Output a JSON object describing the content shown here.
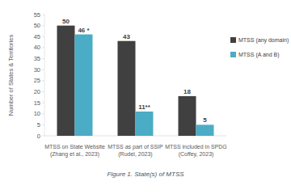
{
  "chart_data": {
    "type": "bar",
    "caption": "Figure 1. State(s) of MTSS",
    "y_label": "Number of States & Territories",
    "categories": [
      "MTSS on State Website (Zhang et al., 2023)",
      "MTSS as part of SSIP (Rudel, 2023)",
      "MTSS included in SPDG (Coffey, 2023)"
    ],
    "series": [
      {
        "name": "MTSS (any domain)",
        "color": "#404040",
        "values": [
          50,
          43,
          18
        ]
      },
      {
        "name": "MTSS (A and B)",
        "color": "#4bacc6",
        "values": [
          46,
          11,
          5
        ],
        "value_labels": [
          "46 *",
          "11**",
          "5"
        ]
      }
    ],
    "ylim": [
      0,
      55
    ],
    "yticks": [
      0,
      5,
      10,
      15,
      20,
      25,
      30,
      35,
      40,
      45,
      50,
      55
    ],
    "grid": false,
    "legend": "right",
    "data_labels": true
  }
}
